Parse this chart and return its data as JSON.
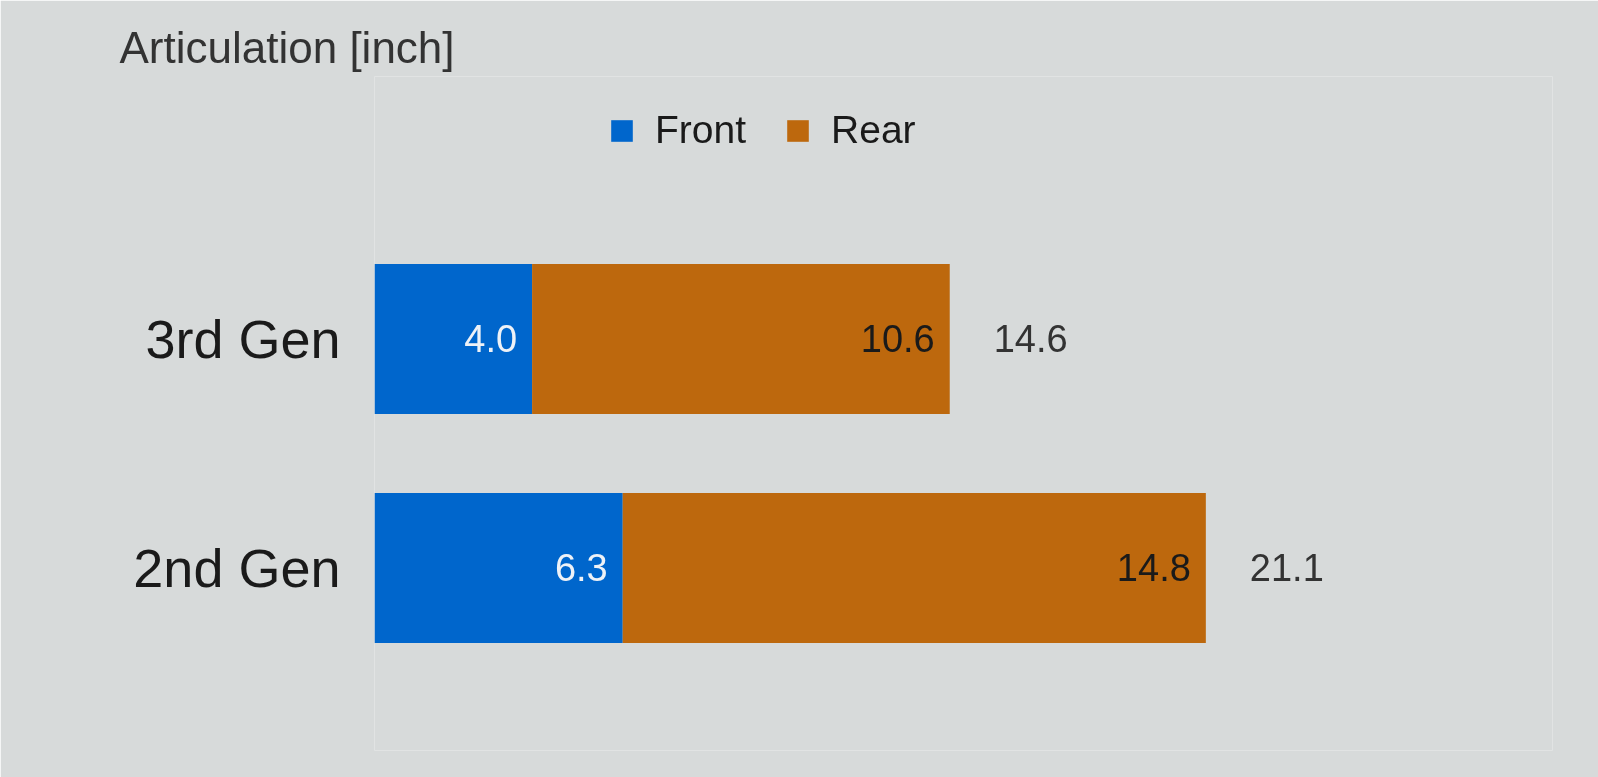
{
  "chart_data": {
    "type": "bar",
    "orientation": "horizontal",
    "stacked": true,
    "title": "Articulation [inch]",
    "categories": [
      "3rd Gen",
      "2nd Gen"
    ],
    "series": [
      {
        "name": "Front",
        "color": "#0066cc",
        "values": [
          4.0,
          6.3
        ],
        "value_labels": [
          "4.0",
          "6.3"
        ]
      },
      {
        "name": "Rear",
        "color": "#bd680d",
        "values": [
          10.6,
          14.8
        ],
        "value_labels": [
          "10.6",
          "14.8"
        ]
      }
    ],
    "totals": [
      "14.6",
      "21.1"
    ],
    "legend": "top",
    "grid": false
  }
}
